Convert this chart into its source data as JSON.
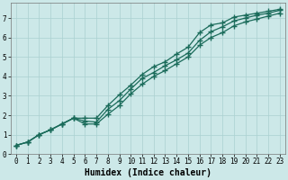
{
  "xlabel": "Humidex (Indice chaleur)",
  "xlim": [
    -0.5,
    23.5
  ],
  "ylim": [
    0,
    7.8
  ],
  "xticks": [
    0,
    1,
    2,
    3,
    4,
    5,
    6,
    7,
    8,
    9,
    10,
    11,
    12,
    13,
    14,
    15,
    16,
    17,
    18,
    19,
    20,
    21,
    22,
    23
  ],
  "yticks": [
    0,
    1,
    2,
    3,
    4,
    5,
    6,
    7
  ],
  "bg_color": "#cce8e8",
  "grid_color": "#aad0d0",
  "line_color": "#1a6b5a",
  "line1_x": [
    0,
    1,
    2,
    3,
    4,
    5,
    6,
    7,
    8,
    9,
    10,
    11,
    12,
    13,
    14,
    15,
    16,
    17,
    18,
    19,
    20,
    21,
    22,
    23
  ],
  "line1_y": [
    0.45,
    0.62,
    1.0,
    1.25,
    1.55,
    1.85,
    1.85,
    1.85,
    2.5,
    3.05,
    3.55,
    4.1,
    4.5,
    4.75,
    5.15,
    5.5,
    6.25,
    6.65,
    6.75,
    7.05,
    7.15,
    7.25,
    7.35,
    7.45
  ],
  "line2_x": [
    0,
    1,
    2,
    3,
    4,
    5,
    6,
    7,
    8,
    9,
    10,
    11,
    12,
    13,
    14,
    15,
    16,
    17,
    18,
    19,
    20,
    21,
    22,
    23
  ],
  "line2_y": [
    0.45,
    0.62,
    1.0,
    1.25,
    1.55,
    1.85,
    1.7,
    1.65,
    2.3,
    2.75,
    3.35,
    3.9,
    4.2,
    4.55,
    4.85,
    5.2,
    5.85,
    6.3,
    6.55,
    6.85,
    7.0,
    7.15,
    7.25,
    7.4
  ],
  "line3_x": [
    0,
    1,
    2,
    3,
    4,
    5,
    6,
    7,
    8,
    9,
    10,
    11,
    12,
    13,
    14,
    15,
    16,
    17,
    18,
    19,
    20,
    21,
    22,
    23
  ],
  "line3_y": [
    0.45,
    0.62,
    1.0,
    1.25,
    1.55,
    1.85,
    1.55,
    1.55,
    2.05,
    2.5,
    3.1,
    3.6,
    4.0,
    4.3,
    4.65,
    5.0,
    5.6,
    6.0,
    6.25,
    6.6,
    6.8,
    6.95,
    7.1,
    7.25
  ],
  "marker": "+",
  "markersize": 4,
  "markeredgewidth": 1.0,
  "linewidth": 0.9,
  "tick_fontsize": 5.5,
  "label_fontsize": 7,
  "label_fontfamily": "monospace"
}
